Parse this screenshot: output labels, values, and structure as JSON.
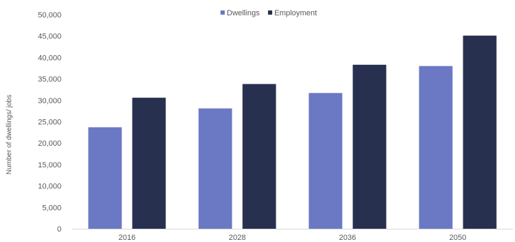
{
  "chart_data": {
    "type": "bar",
    "title": "",
    "xlabel": "",
    "ylabel": "Number of dwellings/ jobs",
    "categories": [
      "2016",
      "2028",
      "2036",
      "2050"
    ],
    "series": [
      {
        "name": "Dwellings",
        "values": [
          23700,
          28100,
          31700,
          38000
        ],
        "color": "#6b78c4"
      },
      {
        "name": "Employment",
        "values": [
          30600,
          33800,
          38300,
          45100
        ],
        "color": "#27304f"
      }
    ],
    "ylim": [
      0,
      50000
    ],
    "yticks": [
      "0",
      "5,000",
      "10,000",
      "15,000",
      "20,000",
      "25,000",
      "30,000",
      "35,000",
      "40,000",
      "45,000",
      "50,000"
    ],
    "grid": false,
    "legend_position": "top-center"
  }
}
